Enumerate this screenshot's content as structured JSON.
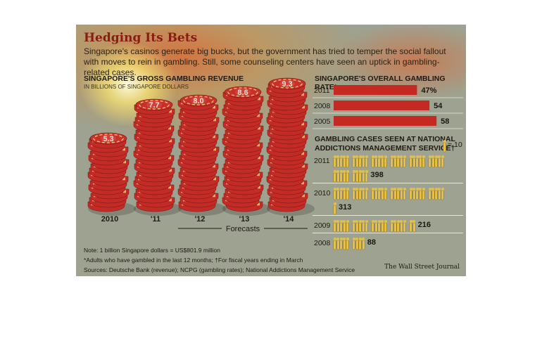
{
  "header": {
    "title": "Hedging Its Bets",
    "subtitle": "Singapore's casinos generate big bucks, but the government has tried to temper the social fallout with moves to rein in gambling. Still, some counseling centers have seen an uptick in gambling-related cases."
  },
  "revenue": {
    "title": "SINGAPORE'S GROSS GAMBLING REVENUE",
    "subtitle": "IN BILLIONS OF SINGAPORE DOLLARS",
    "forecast_label": "Forecasts"
  },
  "rate": {
    "title": "SINGAPORE'S OVERALL GAMBLING RATE*"
  },
  "cases": {
    "title_line1": "GAMBLING CASES SEEN AT NATIONAL",
    "title_line2": "ADDICTIONS MANAGEMENT SERVICE†",
    "legend_label": "= 10",
    "icon": "person-icon"
  },
  "footer": {
    "note1": "Note: 1 billion Singapore dollars = US$801.9 million",
    "note2": "*Adults who have gambled in the last 12 months; †For fiscal years ending in March",
    "sources": "Sources: Deutsche Bank (revenue); NCPG (gambling rates); National Addictions Management Service",
    "credit": "The Wall Street Journal"
  },
  "colors": {
    "panel": "#9ea290",
    "chip_red": "#c22b26",
    "chip_stripe": "#f0c878",
    "bar_red": "#c42a22",
    "person": "#e6c046"
  },
  "chart_data": [
    {
      "type": "bar",
      "title": "SINGAPORE'S GROSS GAMBLING REVENUE",
      "ylabel": "IN BILLIONS OF SINGAPORE DOLLARS",
      "categories": [
        "2010",
        "'11",
        "'12",
        "'13",
        "'14"
      ],
      "values": [
        5.3,
        7.7,
        8.0,
        8.6,
        9.3
      ],
      "value_labels": [
        "5.3",
        "7.7",
        "8.0",
        "8.6",
        "9.3"
      ],
      "forecast": [
        false,
        false,
        true,
        true,
        true
      ],
      "mark": "stacked casino chips"
    },
    {
      "type": "bar",
      "orientation": "horizontal",
      "title": "SINGAPORE'S OVERALL GAMBLING RATE*",
      "categories": [
        "2011",
        "2008",
        "2005"
      ],
      "values": [
        47,
        54,
        58
      ],
      "value_labels": [
        "47%",
        "54",
        "58"
      ],
      "unit": "%"
    },
    {
      "type": "bar",
      "orientation": "horizontal",
      "mark": "pictogram",
      "title": "GAMBLING CASES SEEN AT NATIONAL ADDICTIONS MANAGEMENT SERVICE†",
      "icon_value": 10,
      "categories": [
        "2011",
        "2010",
        "2009",
        "2008"
      ],
      "values": [
        398,
        313,
        216,
        88
      ],
      "value_labels": [
        "398",
        "313",
        "216",
        "88"
      ]
    }
  ]
}
